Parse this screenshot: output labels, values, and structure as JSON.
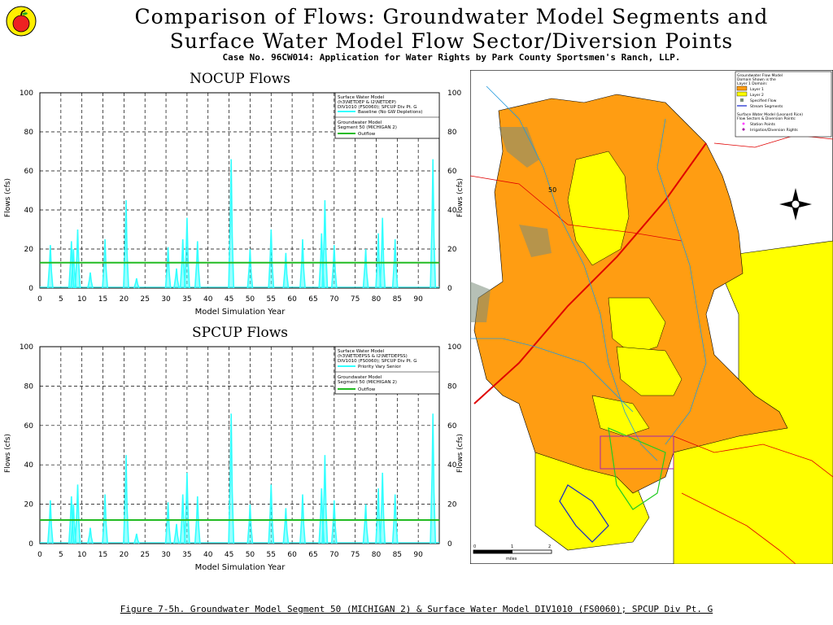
{
  "header": {
    "title_line1": "Comparison of Flows: Groundwater Model Segments and",
    "title_line2": "Surface Water Model Flow Sector/Diversion Points",
    "subtitle": "Case No. 96CW014: Application for Water Rights by Park County Sportsmen's Ranch, LLP."
  },
  "footer": {
    "caption": "Figure 7-5h. Groundwater Model Segment 50 (MICHIGAN 2) & Surface Water Model DIV1010 (FS0060); SPCUP Div Pt. G"
  },
  "colors": {
    "flow": "#33ffff",
    "outflow": "#22bb22",
    "lake": "#ff9d12",
    "yellow": "#ffff00",
    "road": "#e00000",
    "stream": "#3377ff"
  },
  "chart_data": [
    {
      "type": "line",
      "title": "NOCUP Flows",
      "xlabel": "Model Simulation Year",
      "ylabel": "Flows (cfs)",
      "xlim": [
        0,
        95
      ],
      "ylim": [
        0,
        100
      ],
      "xticks": [
        "0",
        "5",
        "10",
        "15",
        "20",
        "25",
        "30",
        "35",
        "40",
        "45",
        "50",
        "55",
        "60",
        "65",
        "70",
        "75",
        "80",
        "85",
        "90"
      ],
      "yticks": [
        "0",
        "20",
        "40",
        "60",
        "80",
        "100"
      ],
      "legend": {
        "lines": [
          "Surface Water Model",
          "(h3\\NETDEP & I2\\NETDEP)",
          "DIV1010 (FS0060); SPCUP Div Pt. G"
        ],
        "entry1": "Baseline (No GW Depletions)",
        "lines2": [
          "Groundwater Model",
          "Segment 50 (MICHIGAN 2)"
        ],
        "entry2": "Outflow"
      },
      "series": [
        {
          "name": "Baseline (No GW Depletions)",
          "peaks": [
            [
              2.5,
              22
            ],
            [
              7.5,
              24
            ],
            [
              8,
              20
            ],
            [
              9,
              30
            ],
            [
              12,
              8
            ],
            [
              15.5,
              25
            ],
            [
              20.5,
              45
            ],
            [
              23,
              5
            ],
            [
              30.5,
              21
            ],
            [
              32.5,
              10
            ],
            [
              34,
              25
            ],
            [
              35,
              36
            ],
            [
              37.5,
              24
            ],
            [
              45.5,
              66
            ],
            [
              50,
              20
            ],
            [
              55,
              30
            ],
            [
              58.5,
              18
            ],
            [
              62.5,
              25
            ],
            [
              67,
              28
            ],
            [
              67.8,
              45
            ],
            [
              70,
              22
            ],
            [
              77.5,
              20
            ],
            [
              80.5,
              28
            ],
            [
              81.5,
              36
            ],
            [
              84.5,
              25
            ],
            [
              93.5,
              66
            ]
          ]
        },
        {
          "name": "Outflow",
          "constant": 13
        }
      ]
    },
    {
      "type": "line",
      "title": "SPCUP Flows",
      "xlabel": "Model Simulation Year",
      "ylabel": "Flows (cfs)",
      "xlim": [
        0,
        95
      ],
      "ylim": [
        0,
        100
      ],
      "xticks": [
        "0",
        "5",
        "10",
        "15",
        "20",
        "25",
        "30",
        "35",
        "40",
        "45",
        "50",
        "55",
        "60",
        "65",
        "70",
        "75",
        "80",
        "85",
        "90"
      ],
      "yticks": [
        "0",
        "20",
        "40",
        "60",
        "80",
        "100"
      ],
      "legend": {
        "lines": [
          "Surface Water Model",
          "(h3\\NETDEPSS & I2\\NETDEPSS)",
          "DIV1010 (FS0060); SPCUP Div Pt. G"
        ],
        "entry1": "Priority Vary Senior",
        "lines2": [
          "Groundwater Model",
          "Segment 50 (MICHIGAN 2)"
        ],
        "entry2": "Outflow"
      },
      "series": [
        {
          "name": "Priority Vary Senior",
          "peaks": [
            [
              2.5,
              22
            ],
            [
              7.5,
              24
            ],
            [
              8,
              20
            ],
            [
              9,
              30
            ],
            [
              12,
              8
            ],
            [
              15.5,
              25
            ],
            [
              20.5,
              45
            ],
            [
              23,
              5
            ],
            [
              30.5,
              21
            ],
            [
              32.5,
              10
            ],
            [
              34,
              25
            ],
            [
              35,
              36
            ],
            [
              37.5,
              24
            ],
            [
              45.5,
              66
            ],
            [
              50,
              20
            ],
            [
              55,
              30
            ],
            [
              58.5,
              18
            ],
            [
              62.5,
              25
            ],
            [
              67,
              28
            ],
            [
              67.8,
              45
            ],
            [
              70,
              22
            ],
            [
              77.5,
              20
            ],
            [
              80.5,
              28
            ],
            [
              81.5,
              36
            ],
            [
              84.5,
              25
            ],
            [
              93.5,
              66
            ]
          ]
        },
        {
          "name": "Outflow",
          "constant": 12
        }
      ]
    }
  ],
  "map": {
    "legend_title": [
      "Groundwater Flow Model",
      "Domain Shown is the",
      "Layer 1 Domain:"
    ],
    "legend_items": [
      "Layer 1",
      "Layer 2",
      "Specified Flow",
      "Stream Segments"
    ],
    "legend_title2": [
      "Surface Water Model (Leonard Rice)",
      "Flow Sectors & Diversion Points:"
    ],
    "legend_items2": [
      "Station Points",
      "Irrigation/Diversion Rights"
    ],
    "segment_label": "50",
    "scale_label": "miles",
    "scale_ticks": [
      "0",
      "1",
      "2"
    ]
  }
}
